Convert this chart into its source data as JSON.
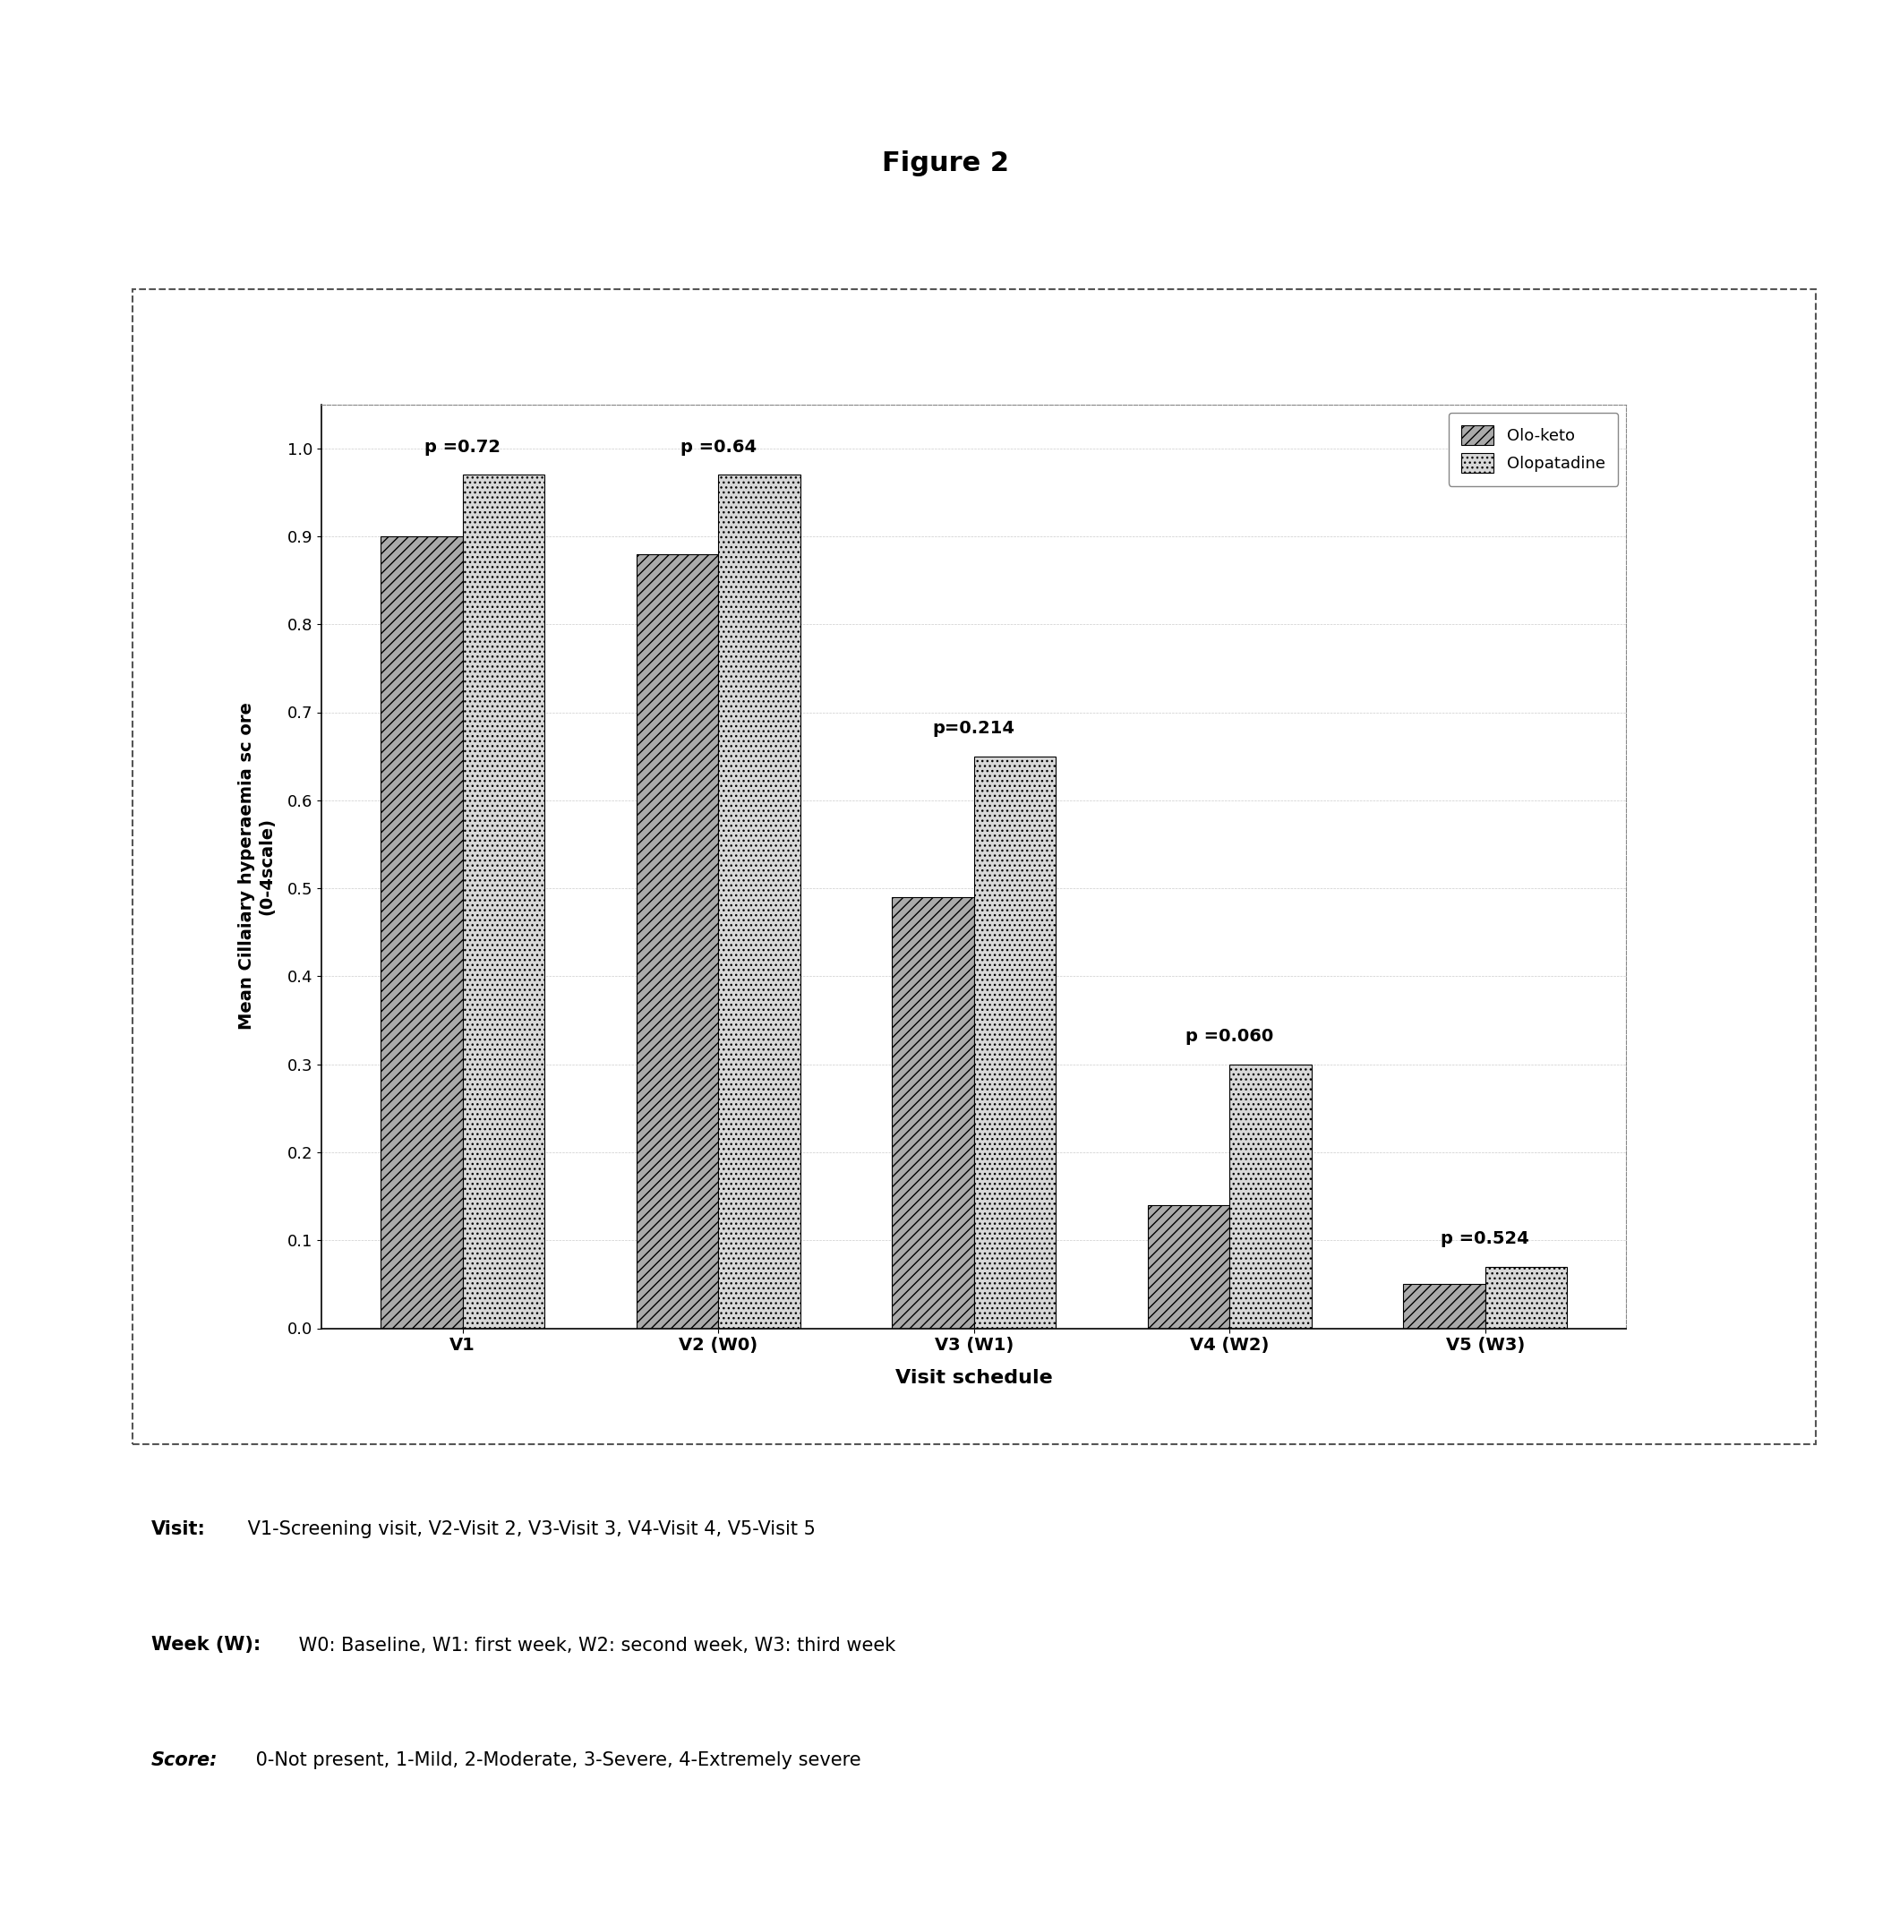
{
  "title": "Figure 2",
  "categories": [
    "V1",
    "V2 (W0)",
    "V3 (W1)",
    "V4 (W2)",
    "V5 (W3)"
  ],
  "olo_keto": [
    0.9,
    0.88,
    0.49,
    0.14,
    0.05
  ],
  "olopatadine": [
    0.97,
    0.97,
    0.65,
    0.3,
    0.07
  ],
  "p_values": [
    "p =0.72",
    "p =0.64",
    "p=0.214",
    "p =0.060",
    "p =0.524"
  ],
  "ylabel_line1": "Mean Cillaiary hyperaemia sc ore",
  "ylabel_line2": "(0-4scale)",
  "xlabel": "Visit schedule",
  "ylim": [
    0,
    1.05
  ],
  "yticks": [
    0,
    0.1,
    0.2,
    0.3,
    0.4,
    0.5,
    0.6,
    0.7,
    0.8,
    0.9,
    1
  ],
  "legend_labels": [
    "Olo-keto",
    "Olopatadine"
  ],
  "color_oloketo": "#aaaaaa",
  "color_olopatadine": "#d8d8d8",
  "hatch_oloketo": "///",
  "hatch_olopatadine": "...",
  "background_color": "#ffffff",
  "bar_width": 0.32,
  "note_visit_bold": "Visit:",
  "note_visit_rest": " V1-Screening visit, V2-Visit 2, V3-Visit 3, V4-Visit 4, V5-Visit 5",
  "note_week_bold": "Week (W):",
  "note_week_rest": " W0: Baseline, W1: first week, W2: second week, W3: third week",
  "note_score_bold": "Score:",
  "note_score_rest": " 0-Not present, 1-Mild, 2-Moderate, 3-Severe, 4-Extremely severe"
}
